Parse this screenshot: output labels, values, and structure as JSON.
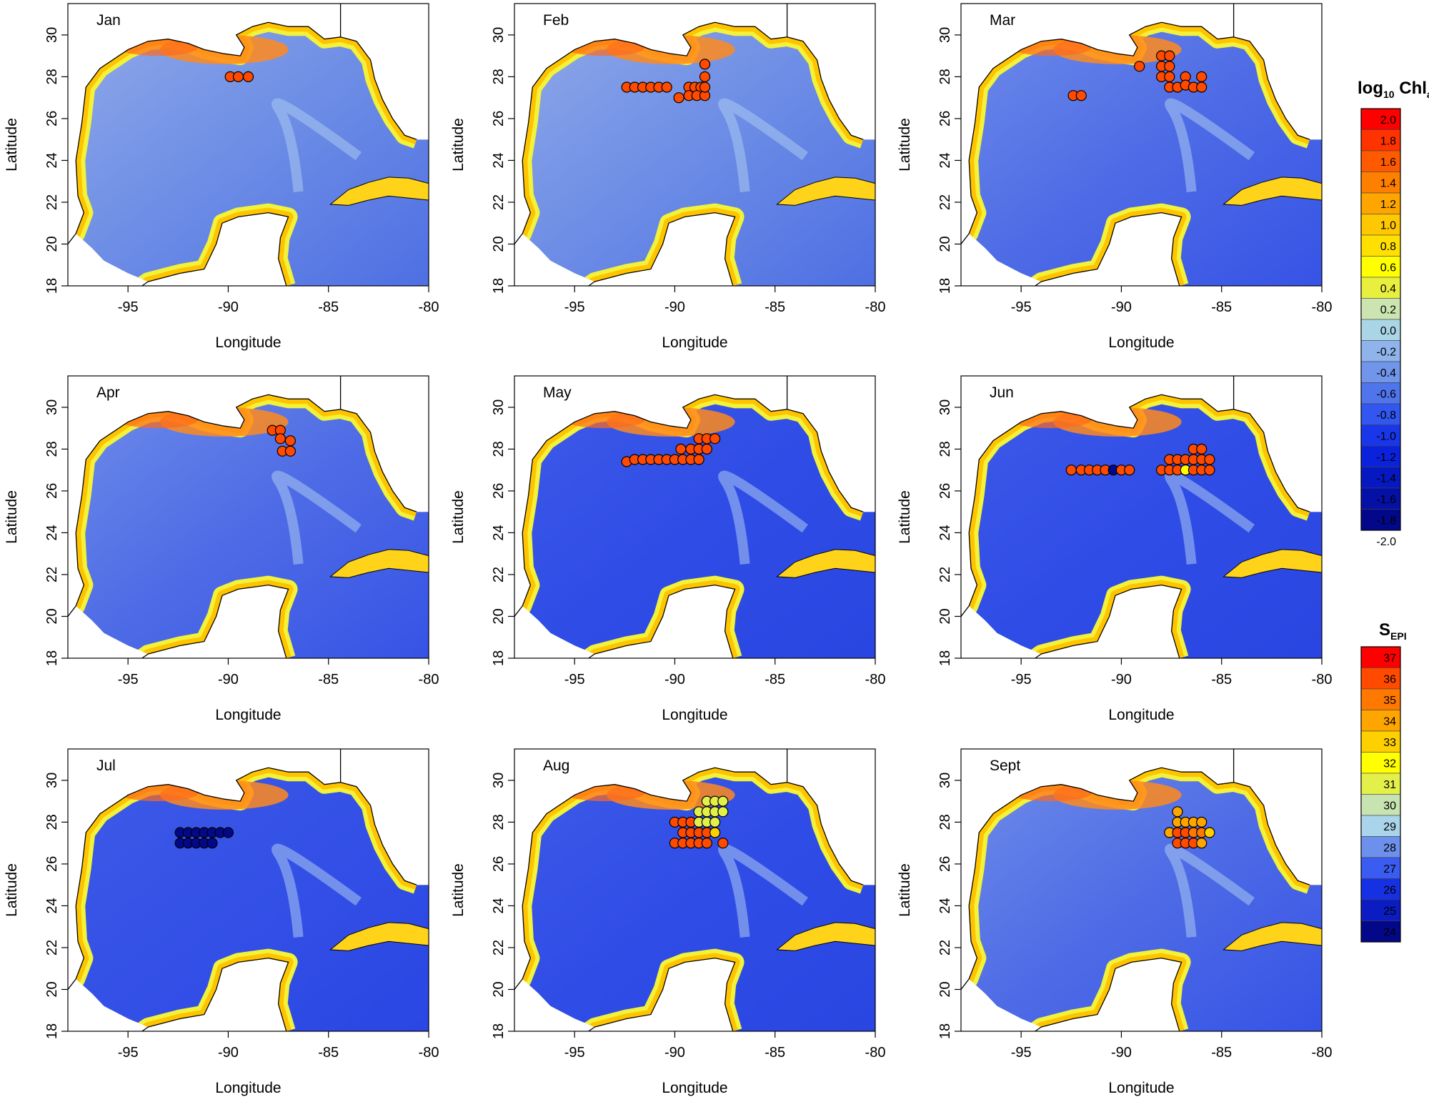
{
  "figure": {
    "xlabel": "Longitude",
    "ylabel": "Latitude",
    "x_ticks": [
      -95,
      -90,
      -85,
      -80
    ],
    "y_ticks": [
      18,
      20,
      22,
      24,
      26,
      28,
      30
    ],
    "xlim": [
      -98,
      -80
    ],
    "ylim": [
      18,
      31.5
    ]
  },
  "chart_data": [
    {
      "type": "scatter",
      "title": "Jan",
      "chl_pattern": "low",
      "points": [
        {
          "x": -89.9,
          "y": 28.0,
          "s": 36
        },
        {
          "x": -89.5,
          "y": 28.0,
          "s": 36
        },
        {
          "x": -89.0,
          "y": 28.0,
          "s": 36
        }
      ]
    },
    {
      "type": "scatter",
      "title": "Feb",
      "chl_pattern": "low",
      "points": [
        {
          "x": -92.4,
          "y": 27.5,
          "s": 36
        },
        {
          "x": -92.0,
          "y": 27.5,
          "s": 36
        },
        {
          "x": -91.6,
          "y": 27.5,
          "s": 36
        },
        {
          "x": -91.2,
          "y": 27.5,
          "s": 36
        },
        {
          "x": -90.8,
          "y": 27.5,
          "s": 36
        },
        {
          "x": -90.4,
          "y": 27.5,
          "s": 36
        },
        {
          "x": -89.8,
          "y": 27.0,
          "s": 36
        },
        {
          "x": -89.3,
          "y": 27.5,
          "s": 36
        },
        {
          "x": -89.0,
          "y": 27.5,
          "s": 36
        },
        {
          "x": -88.7,
          "y": 27.5,
          "s": 36
        },
        {
          "x": -89.3,
          "y": 27.1,
          "s": 36
        },
        {
          "x": -88.9,
          "y": 27.1,
          "s": 36
        },
        {
          "x": -88.5,
          "y": 27.1,
          "s": 36
        },
        {
          "x": -88.5,
          "y": 27.5,
          "s": 36
        },
        {
          "x": -88.5,
          "y": 28.0,
          "s": 36
        },
        {
          "x": -88.5,
          "y": 28.6,
          "s": 35.5
        }
      ]
    },
    {
      "type": "scatter",
      "title": "Mar",
      "chl_pattern": "mid",
      "points": [
        {
          "x": -92.4,
          "y": 27.1,
          "s": 36
        },
        {
          "x": -92.0,
          "y": 27.1,
          "s": 36
        },
        {
          "x": -89.1,
          "y": 28.5,
          "s": 36
        },
        {
          "x": -88.0,
          "y": 29.0,
          "s": 36
        },
        {
          "x": -87.6,
          "y": 29.0,
          "s": 36
        },
        {
          "x": -88.0,
          "y": 28.5,
          "s": 36
        },
        {
          "x": -87.6,
          "y": 28.5,
          "s": 36
        },
        {
          "x": -88.0,
          "y": 28.0,
          "s": 36
        },
        {
          "x": -87.6,
          "y": 28.0,
          "s": 36
        },
        {
          "x": -87.6,
          "y": 27.5,
          "s": 36
        },
        {
          "x": -87.2,
          "y": 27.5,
          "s": 36
        },
        {
          "x": -86.8,
          "y": 28.0,
          "s": 36
        },
        {
          "x": -86.8,
          "y": 27.6,
          "s": 36
        },
        {
          "x": -86.4,
          "y": 27.5,
          "s": 36
        },
        {
          "x": -86.0,
          "y": 28.0,
          "s": 36
        },
        {
          "x": -86.0,
          "y": 27.5,
          "s": 36
        }
      ]
    },
    {
      "type": "scatter",
      "title": "Apr",
      "chl_pattern": "mid",
      "points": [
        {
          "x": -87.8,
          "y": 28.9,
          "s": 35.5
        },
        {
          "x": -87.4,
          "y": 28.9,
          "s": 36
        },
        {
          "x": -87.4,
          "y": 28.5,
          "s": 36
        },
        {
          "x": -86.9,
          "y": 28.4,
          "s": 36
        },
        {
          "x": -87.3,
          "y": 27.9,
          "s": 36
        },
        {
          "x": -86.9,
          "y": 27.9,
          "s": 36
        }
      ]
    },
    {
      "type": "scatter",
      "title": "May",
      "chl_pattern": "high",
      "points": [
        {
          "x": -92.4,
          "y": 27.4,
          "s": 36
        },
        {
          "x": -92.0,
          "y": 27.5,
          "s": 36
        },
        {
          "x": -91.6,
          "y": 27.5,
          "s": 36
        },
        {
          "x": -91.2,
          "y": 27.5,
          "s": 36
        },
        {
          "x": -90.8,
          "y": 27.5,
          "s": 36
        },
        {
          "x": -90.4,
          "y": 27.5,
          "s": 36
        },
        {
          "x": -90.0,
          "y": 27.5,
          "s": 36
        },
        {
          "x": -89.7,
          "y": 28.0,
          "s": 36
        },
        {
          "x": -89.6,
          "y": 27.5,
          "s": 36
        },
        {
          "x": -89.2,
          "y": 27.5,
          "s": 36
        },
        {
          "x": -89.2,
          "y": 28.0,
          "s": 36
        },
        {
          "x": -88.8,
          "y": 27.5,
          "s": 36
        },
        {
          "x": -88.8,
          "y": 28.0,
          "s": 36
        },
        {
          "x": -88.8,
          "y": 28.5,
          "s": 36
        },
        {
          "x": -88.4,
          "y": 28.0,
          "s": 36
        },
        {
          "x": -88.4,
          "y": 28.5,
          "s": 36
        },
        {
          "x": -88.0,
          "y": 28.5,
          "s": 36
        }
      ]
    },
    {
      "type": "scatter",
      "title": "Jun",
      "chl_pattern": "high",
      "points": [
        {
          "x": -92.5,
          "y": 27.0,
          "s": 36
        },
        {
          "x": -92.0,
          "y": 27.0,
          "s": 36
        },
        {
          "x": -91.6,
          "y": 27.0,
          "s": 36
        },
        {
          "x": -91.2,
          "y": 27.0,
          "s": 36
        },
        {
          "x": -90.8,
          "y": 27.0,
          "s": 36
        },
        {
          "x": -90.4,
          "y": 27.0,
          "s": 24
        },
        {
          "x": -90.0,
          "y": 27.0,
          "s": 36
        },
        {
          "x": -89.6,
          "y": 27.0,
          "s": 36
        },
        {
          "x": -88.0,
          "y": 27.0,
          "s": 36
        },
        {
          "x": -87.6,
          "y": 27.0,
          "s": 36
        },
        {
          "x": -87.2,
          "y": 27.0,
          "s": 36
        },
        {
          "x": -86.8,
          "y": 27.0,
          "s": 32
        },
        {
          "x": -86.4,
          "y": 27.0,
          "s": 36
        },
        {
          "x": -86.0,
          "y": 27.0,
          "s": 36
        },
        {
          "x": -85.6,
          "y": 27.0,
          "s": 36
        },
        {
          "x": -87.6,
          "y": 27.5,
          "s": 36
        },
        {
          "x": -87.2,
          "y": 27.5,
          "s": 36
        },
        {
          "x": -86.8,
          "y": 27.5,
          "s": 36
        },
        {
          "x": -86.4,
          "y": 27.5,
          "s": 36
        },
        {
          "x": -86.0,
          "y": 27.5,
          "s": 36
        },
        {
          "x": -85.6,
          "y": 27.5,
          "s": 36
        },
        {
          "x": -86.4,
          "y": 28.0,
          "s": 36
        },
        {
          "x": -86.0,
          "y": 28.0,
          "s": 36
        }
      ]
    },
    {
      "type": "scatter",
      "title": "Jul",
      "chl_pattern": "july",
      "points": [
        {
          "x": -92.4,
          "y": 27.5,
          "s": 24
        },
        {
          "x": -92.0,
          "y": 27.5,
          "s": 24
        },
        {
          "x": -91.6,
          "y": 27.5,
          "s": 24
        },
        {
          "x": -91.2,
          "y": 27.5,
          "s": 24
        },
        {
          "x": -90.8,
          "y": 27.5,
          "s": 24
        },
        {
          "x": -90.4,
          "y": 27.5,
          "s": 24
        },
        {
          "x": -90.0,
          "y": 27.5,
          "s": 24
        },
        {
          "x": -92.4,
          "y": 27.0,
          "s": 24
        },
        {
          "x": -92.0,
          "y": 27.0,
          "s": 24
        },
        {
          "x": -91.6,
          "y": 27.0,
          "s": 24
        },
        {
          "x": -91.2,
          "y": 27.0,
          "s": 24
        },
        {
          "x": -90.8,
          "y": 27.0,
          "s": 24
        }
      ]
    },
    {
      "type": "scatter",
      "title": "Aug",
      "chl_pattern": "high",
      "points": [
        {
          "x": -90.0,
          "y": 28.0,
          "s": 36
        },
        {
          "x": -89.6,
          "y": 28.0,
          "s": 36
        },
        {
          "x": -89.2,
          "y": 28.0,
          "s": 36
        },
        {
          "x": -88.8,
          "y": 28.0,
          "s": 31
        },
        {
          "x": -88.4,
          "y": 28.0,
          "s": 31
        },
        {
          "x": -88.8,
          "y": 28.5,
          "s": 31
        },
        {
          "x": -88.4,
          "y": 28.5,
          "s": 31
        },
        {
          "x": -88.0,
          "y": 28.5,
          "s": 31
        },
        {
          "x": -88.0,
          "y": 28.0,
          "s": 31
        },
        {
          "x": -88.4,
          "y": 29.0,
          "s": 31
        },
        {
          "x": -88.0,
          "y": 29.0,
          "s": 31
        },
        {
          "x": -87.6,
          "y": 29.0,
          "s": 31
        },
        {
          "x": -87.6,
          "y": 28.5,
          "s": 31
        },
        {
          "x": -89.6,
          "y": 27.5,
          "s": 36
        },
        {
          "x": -89.2,
          "y": 27.5,
          "s": 36
        },
        {
          "x": -88.8,
          "y": 27.5,
          "s": 36
        },
        {
          "x": -88.4,
          "y": 27.5,
          "s": 36
        },
        {
          "x": -88.0,
          "y": 27.5,
          "s": 33
        },
        {
          "x": -90.0,
          "y": 27.0,
          "s": 36
        },
        {
          "x": -89.6,
          "y": 27.0,
          "s": 36
        },
        {
          "x": -89.2,
          "y": 27.0,
          "s": 36
        },
        {
          "x": -88.8,
          "y": 27.0,
          "s": 36
        },
        {
          "x": -88.4,
          "y": 27.0,
          "s": 36
        },
        {
          "x": -87.6,
          "y": 27.0,
          "s": 36
        }
      ]
    },
    {
      "type": "scatter",
      "title": "Sept",
      "chl_pattern": "mid",
      "points": [
        {
          "x": -87.6,
          "y": 27.5,
          "s": 34
        },
        {
          "x": -87.2,
          "y": 28.5,
          "s": 34
        },
        {
          "x": -87.2,
          "y": 28.0,
          "s": 34
        },
        {
          "x": -86.8,
          "y": 28.0,
          "s": 34
        },
        {
          "x": -86.4,
          "y": 28.0,
          "s": 34
        },
        {
          "x": -86.0,
          "y": 28.0,
          "s": 34
        },
        {
          "x": -87.2,
          "y": 27.5,
          "s": 36
        },
        {
          "x": -86.8,
          "y": 27.5,
          "s": 36
        },
        {
          "x": -86.4,
          "y": 27.5,
          "s": 35
        },
        {
          "x": -86.0,
          "y": 27.5,
          "s": 35
        },
        {
          "x": -85.6,
          "y": 27.5,
          "s": 33
        },
        {
          "x": -87.2,
          "y": 27.0,
          "s": 36
        },
        {
          "x": -86.8,
          "y": 27.0,
          "s": 36
        },
        {
          "x": -86.4,
          "y": 27.0,
          "s": 36
        },
        {
          "x": -86.0,
          "y": 27.0,
          "s": 34
        }
      ]
    }
  ],
  "legend_chl": {
    "title_main": "log",
    "title_sub": "10",
    "title_rest": " Chl",
    "title_rest_sub": "a",
    "ticks": [
      "2.0",
      "1.8",
      "1.6",
      "1.4",
      "1.2",
      "1.0",
      "0.8",
      "0.6",
      "0.4",
      "0.2",
      "0.0",
      "-0.2",
      "-0.4",
      "-0.6",
      "-0.8",
      "-1.0",
      "-1.2",
      "-1.4",
      "-1.6",
      "-1.8",
      "-2.0"
    ],
    "colors": [
      "#ff0000",
      "#ff3300",
      "#ff5a00",
      "#ff8000",
      "#ffa500",
      "#ffc800",
      "#ffe000",
      "#ffff00",
      "#e8ef3e",
      "#cce5b0",
      "#a9d5e6",
      "#8fb4ec",
      "#7095ea",
      "#4f74ec",
      "#3256f0",
      "#1a36ea",
      "#0a22dc",
      "#0618c2",
      "#0510a6",
      "#03088a"
    ]
  },
  "legend_sal": {
    "title_main": "S",
    "title_sub": "EPI",
    "ticks": [
      "37",
      "36",
      "35",
      "34",
      "33",
      "32",
      "31",
      "30",
      "29",
      "28",
      "27",
      "26",
      "25",
      "24"
    ],
    "colors": [
      "#ff0000",
      "#ff4a00",
      "#ff7800",
      "#ffa500",
      "#ffd000",
      "#ffff00",
      "#e4f04a",
      "#c7e3b0",
      "#a9d4ea",
      "#6c90ec",
      "#3a5cf0",
      "#1630e4",
      "#0a1cc2",
      "#03088a"
    ]
  },
  "colors": {
    "salinity_cmap": [
      "#03088a",
      "#0a1cc2",
      "#1630e4",
      "#3a5cf0",
      "#6c90ec",
      "#a9d4ea",
      "#c7e3b0",
      "#e4f04a",
      "#ffff00",
      "#ffd000",
      "#ffa500",
      "#ff7800",
      "#ff4a00",
      "#ff0000"
    ],
    "land": "#ffffff",
    "coast": "#000000"
  }
}
